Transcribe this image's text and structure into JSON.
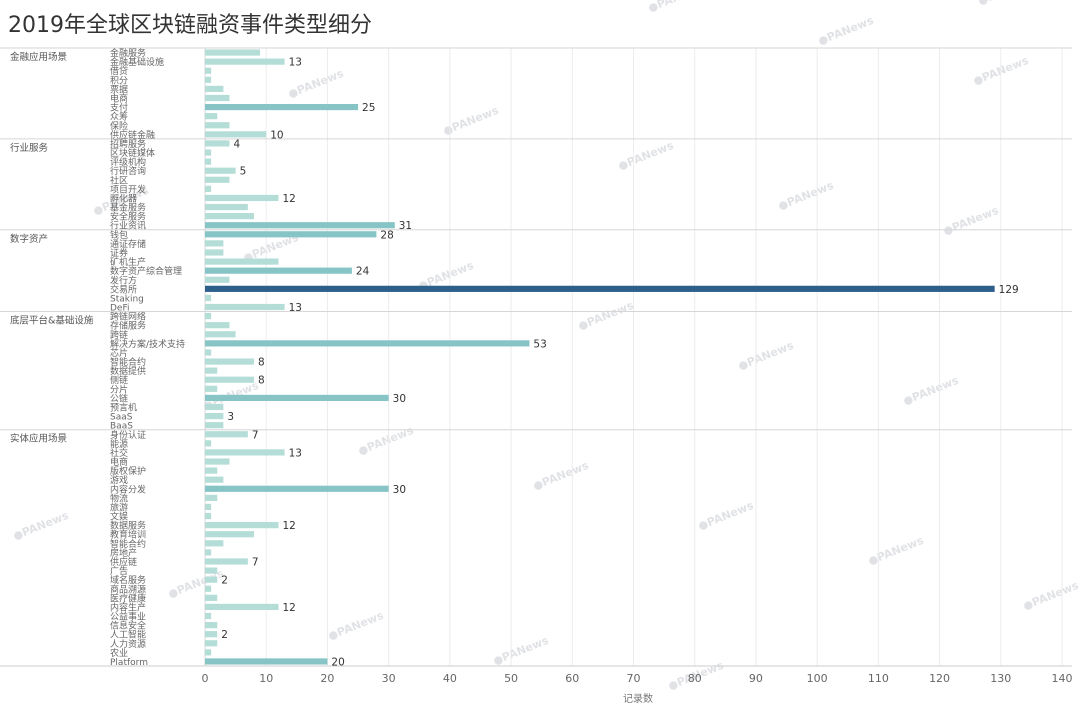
{
  "chart_data": {
    "type": "bar",
    "orientation": "horizontal",
    "title": "2019年全球区块链融资事件类型细分",
    "xlabel": "记录数",
    "ylabel": "",
    "xlim": [
      0,
      140
    ],
    "x_ticks": [
      0,
      10,
      20,
      30,
      40,
      50,
      60,
      70,
      80,
      90,
      100,
      110,
      120,
      130,
      140
    ],
    "grid": true,
    "legend": "none",
    "watermark": "PANews",
    "colors": {
      "low": "#b3ddd6",
      "mid": "#86c4c6",
      "high": "#2c5f8a"
    },
    "groups": [
      {
        "name": "金融应用场景",
        "items": [
          {
            "label": "金融服务",
            "value": 9
          },
          {
            "label": "金融基础设施",
            "value": 13,
            "shown": "13"
          },
          {
            "label": "借贷",
            "value": 1
          },
          {
            "label": "积分",
            "value": 1
          },
          {
            "label": "票据",
            "value": 3
          },
          {
            "label": "电商",
            "value": 4
          },
          {
            "label": "支付",
            "value": 25,
            "shown": "25"
          },
          {
            "label": "众筹",
            "value": 2
          },
          {
            "label": "保险",
            "value": 4
          },
          {
            "label": "供应链金融",
            "value": 10,
            "shown": "10"
          }
        ]
      },
      {
        "name": "行业服务",
        "items": [
          {
            "label": "招聘服务",
            "value": 4,
            "shown": "4"
          },
          {
            "label": "区块链媒体",
            "value": 1
          },
          {
            "label": "评级机构",
            "value": 1
          },
          {
            "label": "行研咨询",
            "value": 5,
            "shown": "5"
          },
          {
            "label": "社区",
            "value": 4
          },
          {
            "label": "项目开发",
            "value": 1
          },
          {
            "label": "孵化器",
            "value": 12,
            "shown": "12"
          },
          {
            "label": "基金服务",
            "value": 7
          },
          {
            "label": "安全服务",
            "value": 8
          },
          {
            "label": "行业资讯",
            "value": 31,
            "shown": "31"
          }
        ]
      },
      {
        "name": "数字资产",
        "items": [
          {
            "label": "钱包",
            "value": 28,
            "shown": "28"
          },
          {
            "label": "通证存储",
            "value": 3
          },
          {
            "label": "证券",
            "value": 3
          },
          {
            "label": "矿机生产",
            "value": 12
          },
          {
            "label": "数字资产综合管理",
            "value": 24,
            "shown": "24"
          },
          {
            "label": "发行方",
            "value": 4
          },
          {
            "label": "交易所",
            "value": 129,
            "shown": "129"
          },
          {
            "label": "Staking",
            "value": 1
          },
          {
            "label": "DeFi",
            "value": 13,
            "shown": "13"
          }
        ]
      },
      {
        "name": "底层平台&基础设施",
        "items": [
          {
            "label": "跨链网络",
            "value": 1
          },
          {
            "label": "存储服务",
            "value": 4
          },
          {
            "label": "跨链",
            "value": 5
          },
          {
            "label": "解决方案/技术支持",
            "value": 53,
            "shown": "53"
          },
          {
            "label": "芯片",
            "value": 1
          },
          {
            "label": "智能合约",
            "value": 8,
            "shown": "8"
          },
          {
            "label": "数据提供",
            "value": 2
          },
          {
            "label": "侧链",
            "value": 8,
            "shown": "8"
          },
          {
            "label": "分片",
            "value": 2
          },
          {
            "label": "公链",
            "value": 30,
            "shown": "30"
          },
          {
            "label": "预言机",
            "value": 3
          },
          {
            "label": "SaaS",
            "value": 3,
            "shown": "3"
          },
          {
            "label": "BaaS",
            "value": 3
          }
        ]
      },
      {
        "name": "实体应用场景",
        "items": [
          {
            "label": "身份认证",
            "value": 7,
            "shown": "7"
          },
          {
            "label": "能源",
            "value": 1
          },
          {
            "label": "社交",
            "value": 13,
            "shown": "13"
          },
          {
            "label": "电商",
            "value": 4
          },
          {
            "label": "版权保护",
            "value": 2
          },
          {
            "label": "游戏",
            "value": 3
          },
          {
            "label": "内容分发",
            "value": 30,
            "shown": "30"
          },
          {
            "label": "物流",
            "value": 2
          },
          {
            "label": "旅游",
            "value": 1
          },
          {
            "label": "文娱",
            "value": 1
          },
          {
            "label": "数据服务",
            "value": 12,
            "shown": "12"
          },
          {
            "label": "教育培训",
            "value": 8
          },
          {
            "label": "智能合约",
            "value": 3
          },
          {
            "label": "房地产",
            "value": 1
          },
          {
            "label": "供应链",
            "value": 7,
            "shown": "7"
          },
          {
            "label": "广告",
            "value": 2
          },
          {
            "label": "域名服务",
            "value": 2,
            "shown": "2"
          },
          {
            "label": "商品溯源",
            "value": 1
          },
          {
            "label": "医疗健康",
            "value": 2
          },
          {
            "label": "内容生产",
            "value": 12,
            "shown": "12"
          },
          {
            "label": "公益事业",
            "value": 1
          },
          {
            "label": "信息安全",
            "value": 2
          },
          {
            "label": "人工智能",
            "value": 2,
            "shown": "2"
          },
          {
            "label": "人力资源",
            "value": 2
          },
          {
            "label": "农业",
            "value": 1
          },
          {
            "label": "Platform",
            "value": 20,
            "shown": "20"
          }
        ]
      }
    ]
  }
}
